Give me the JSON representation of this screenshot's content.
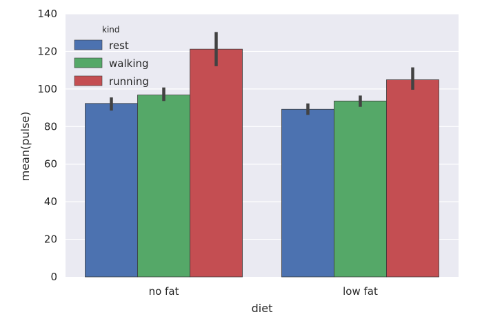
{
  "chart_data": {
    "type": "bar",
    "xlabel": "diet",
    "ylabel": "mean(pulse)",
    "categories": [
      "no fat",
      "low fat"
    ],
    "ylim": [
      0,
      140
    ],
    "yticks": [
      0,
      20,
      40,
      60,
      80,
      100,
      120,
      140
    ],
    "legend": {
      "title": "kind",
      "placement": "top-left"
    },
    "grid": true,
    "series": [
      {
        "name": "rest",
        "color": "#4c72b0",
        "values": [
          92.3,
          89.2
        ],
        "err_low": [
          88.5,
          86.2
        ],
        "err_high": [
          95.5,
          92.3
        ]
      },
      {
        "name": "walking",
        "color": "#55a868",
        "values": [
          96.8,
          93.6
        ],
        "err_low": [
          93.6,
          90.5
        ],
        "err_high": [
          100.8,
          96.5
        ]
      },
      {
        "name": "running",
        "color": "#c44e52",
        "values": [
          121.2,
          104.9
        ],
        "err_low": [
          112.1,
          99.6
        ],
        "err_high": [
          130.3,
          111.5
        ]
      }
    ]
  }
}
